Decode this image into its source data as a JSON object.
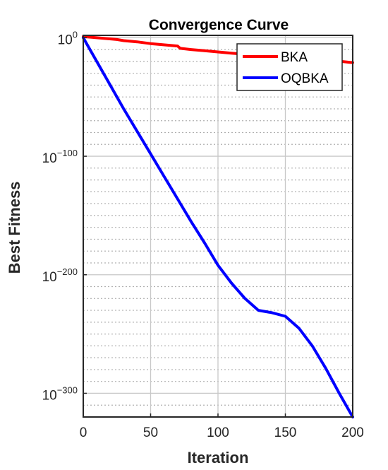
{
  "chart_data": {
    "type": "line",
    "title": "Convergence Curve",
    "xlabel": "Iteration",
    "ylabel": "Best Fitness",
    "xlim": [
      0,
      200
    ],
    "ylim_log10": [
      -320,
      2
    ],
    "yscale": "log",
    "grid": true,
    "minor_grid": true,
    "legend_position": "top-right",
    "x_ticks": [
      "0",
      "50",
      "100",
      "150",
      "200"
    ],
    "y_ticks": [
      {
        "base": "10",
        "exp": "0",
        "log10": 0
      },
      {
        "base": "10",
        "exp": "−100",
        "log10": -100
      },
      {
        "base": "10",
        "exp": "−200",
        "log10": -200
      },
      {
        "base": "10",
        "exp": "−300",
        "log10": -300
      }
    ],
    "series": [
      {
        "name": "BKA",
        "color": "#ff0000",
        "x": [
          0,
          10,
          25,
          30,
          40,
          50,
          70,
          72,
          80,
          90,
          100,
          110,
          120,
          130,
          140,
          150,
          160,
          170,
          180,
          190,
          200
        ],
        "log10_y": [
          1,
          0,
          -1.5,
          -2.5,
          -3.5,
          -5,
          -7,
          -9,
          -10,
          -11,
          -12,
          -13,
          -14,
          -15,
          -15.5,
          -16,
          -17,
          -18,
          -19,
          -19.8,
          -21
        ]
      },
      {
        "name": "OQBKA",
        "color": "#0000ff",
        "x": [
          0,
          10,
          20,
          30,
          40,
          50,
          60,
          70,
          80,
          90,
          100,
          110,
          120,
          130,
          140,
          150,
          160,
          170,
          180,
          190,
          200
        ],
        "log10_y": [
          0,
          -20,
          -40,
          -60,
          -79,
          -98,
          -117,
          -136,
          -155,
          -173,
          -192,
          -207,
          -220,
          -230,
          -232,
          -235,
          -245,
          -260,
          -279,
          -300,
          -320
        ]
      }
    ]
  }
}
